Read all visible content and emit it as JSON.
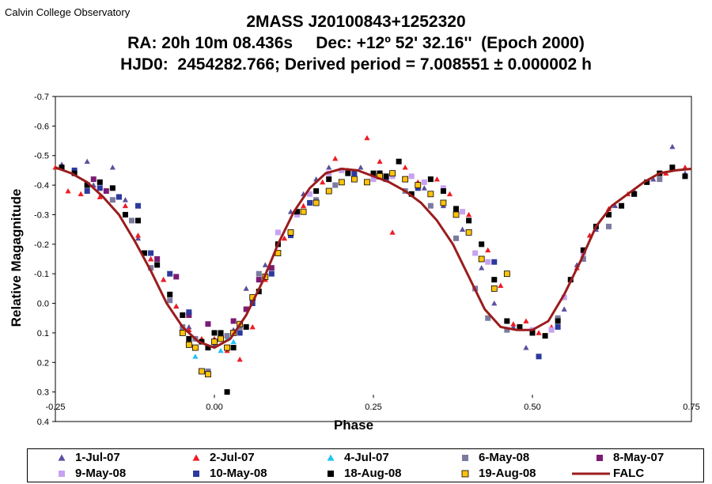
{
  "page": {
    "corner_label": "Calvin College Observatory",
    "title_lines": [
      "2MASS J20100843+1252320",
      "RA: 20h 10m 08.436s     Dec: +12º 52' 32.16''  (Epoch 2000)",
      "HJD0:  2454282.766; Derived period = 7.008551 ± 0.000002 h"
    ]
  },
  "chart_data": {
    "type": "scatter",
    "title": "2MASS J20100843+1252320",
    "xlabel": "Phase",
    "ylabel": "Relative Magagnitude",
    "xlim": [
      -0.25,
      0.75
    ],
    "ylim": [
      -0.7,
      0.4
    ],
    "y_inverted": true,
    "xticks": [
      -0.25,
      0.0,
      0.25,
      0.5,
      0.75
    ],
    "xtick_labels": [
      "-0.25",
      "0.00",
      "0.25",
      "0.50",
      "0.75"
    ],
    "yticks": [
      -0.7,
      -0.6,
      -0.5,
      -0.4,
      -0.3,
      -0.2,
      -0.1,
      0.0,
      0.1,
      0.2,
      0.3,
      0.4
    ],
    "ytick_labels": [
      "-0.7",
      "-0.6",
      "-0.5",
      "-0.4",
      "-0.3",
      "-0.2",
      "-0.1",
      "0.0",
      "0.1",
      "0.2",
      "0.3",
      "0.4"
    ],
    "grid": false,
    "legend_position": "bottom",
    "series": [
      {
        "name": "1-Jul-07",
        "marker": "triangle",
        "color": "#5b4f9e",
        "x": [
          -0.24,
          -0.22,
          -0.2,
          -0.19,
          -0.16,
          -0.14,
          -0.12,
          -0.1,
          -0.08,
          -0.06,
          -0.04,
          -0.02,
          0.0,
          0.03,
          0.05,
          0.08,
          0.1,
          0.12,
          0.14,
          0.16,
          0.18,
          0.2,
          0.23,
          0.26,
          0.3,
          0.33,
          0.36,
          0.39,
          0.42,
          0.44,
          0.47,
          0.49,
          0.52,
          0.55,
          0.57,
          0.6,
          0.63,
          0.66,
          0.69,
          0.72,
          0.74
        ],
        "y": [
          -0.47,
          -0.44,
          -0.48,
          -0.4,
          -0.46,
          -0.35,
          -0.22,
          -0.15,
          -0.08,
          0.01,
          0.08,
          0.13,
          0.14,
          0.09,
          -0.05,
          -0.13,
          -0.24,
          -0.31,
          -0.37,
          -0.42,
          -0.46,
          -0.45,
          -0.46,
          -0.44,
          -0.42,
          -0.39,
          -0.33,
          -0.25,
          -0.12,
          0.0,
          0.08,
          0.15,
          0.11,
          0.02,
          -0.13,
          -0.25,
          -0.33,
          -0.38,
          -0.42,
          -0.53,
          -0.44
        ]
      },
      {
        "name": "2-Jul-07",
        "marker": "triangle",
        "color": "#ee1c25",
        "x": [
          -0.25,
          -0.23,
          -0.21,
          -0.18,
          -0.16,
          -0.14,
          -0.12,
          -0.1,
          -0.08,
          -0.06,
          -0.04,
          -0.02,
          0.0,
          0.02,
          0.04,
          0.06,
          0.08,
          0.11,
          0.14,
          0.17,
          0.19,
          0.21,
          0.24,
          0.26,
          0.28,
          0.3,
          0.32,
          0.35,
          0.37,
          0.4,
          0.43,
          0.45,
          0.47,
          0.49,
          0.51,
          0.53,
          0.55,
          0.57,
          0.59,
          0.62,
          0.65,
          0.68,
          0.71,
          0.74
        ],
        "y": [
          -0.46,
          -0.38,
          -0.37,
          -0.36,
          -0.35,
          -0.33,
          -0.23,
          -0.15,
          -0.08,
          0.01,
          0.09,
          0.12,
          0.12,
          0.16,
          0.19,
          0.08,
          -0.08,
          -0.22,
          -0.33,
          -0.41,
          -0.49,
          -0.45,
          -0.56,
          -0.48,
          -0.24,
          -0.46,
          -0.41,
          -0.42,
          -0.37,
          -0.3,
          -0.18,
          -0.06,
          0.07,
          0.06,
          0.1,
          0.08,
          -0.02,
          -0.12,
          -0.23,
          -0.32,
          -0.37,
          -0.41,
          -0.44,
          -0.46
        ]
      },
      {
        "name": "4-Jul-07",
        "marker": "triangle",
        "color": "#21c4f2",
        "x": [
          -0.03,
          -0.01,
          0.0,
          0.01,
          0.02,
          0.03
        ],
        "y": [
          0.18,
          0.15,
          0.13,
          0.16,
          0.12,
          0.13
        ]
      },
      {
        "name": "6-May-08",
        "marker": "square",
        "color": "#7b7a9f",
        "x": [
          -0.2,
          -0.16,
          -0.13,
          -0.1,
          -0.07,
          -0.05,
          -0.03,
          -0.01,
          0.02,
          0.04,
          0.07,
          0.1,
          0.13,
          0.16,
          0.19,
          0.22,
          0.26,
          0.3,
          0.34,
          0.38,
          0.41,
          0.43,
          0.46,
          0.5,
          0.54,
          0.58,
          0.62,
          0.66,
          0.7
        ],
        "y": [
          -0.4,
          -0.35,
          -0.28,
          -0.12,
          -0.01,
          0.08,
          0.12,
          0.23,
          0.11,
          0.08,
          -0.1,
          -0.2,
          -0.3,
          -0.35,
          -0.4,
          -0.42,
          -0.44,
          -0.38,
          -0.33,
          -0.22,
          -0.05,
          0.05,
          0.09,
          0.1,
          0.05,
          -0.15,
          -0.26,
          -0.37,
          -0.42
        ]
      },
      {
        "name": "8-May-07",
        "marker": "square",
        "color": "#7b1b74",
        "x": [
          -0.19,
          -0.17,
          -0.15,
          -0.09,
          -0.06,
          -0.04,
          -0.01,
          0.03,
          0.05,
          0.07,
          0.09
        ],
        "y": [
          -0.42,
          -0.38,
          -0.36,
          -0.15,
          -0.09,
          0.04,
          0.07,
          0.06,
          0.02,
          -0.08,
          -0.12
        ]
      },
      {
        "name": "9-May-08",
        "marker": "square",
        "color": "#c7a2f1",
        "x": [
          0.1,
          0.13,
          0.15,
          0.18,
          0.2,
          0.22,
          0.25,
          0.28,
          0.31,
          0.33,
          0.36,
          0.39,
          0.41,
          0.43,
          0.5,
          0.53,
          0.55,
          0.58
        ],
        "y": [
          -0.24,
          -0.3,
          -0.37,
          -0.44,
          -0.45,
          -0.43,
          -0.42,
          -0.43,
          -0.43,
          -0.41,
          -0.39,
          -0.31,
          -0.17,
          -0.14,
          0.09,
          0.09,
          -0.02,
          -0.17
        ]
      },
      {
        "name": "10-May-08",
        "marker": "square",
        "color": "#2c3a9d",
        "x": [
          -0.22,
          -0.2,
          -0.18,
          -0.15,
          -0.12,
          -0.1,
          -0.07,
          -0.04,
          0.01,
          0.04,
          0.06,
          0.09,
          0.12,
          0.15,
          0.22,
          0.27,
          0.32,
          0.38,
          0.44,
          0.51,
          0.54
        ],
        "y": [
          -0.45,
          -0.38,
          -0.39,
          -0.36,
          -0.33,
          -0.17,
          -0.1,
          0.03,
          0.12,
          0.1,
          0.0,
          -0.1,
          -0.23,
          -0.34,
          -0.44,
          -0.42,
          -0.39,
          -0.32,
          -0.14,
          0.18,
          0.08
        ]
      },
      {
        "name": "18-Aug-08",
        "marker": "square",
        "color": "#000000",
        "x": [
          -0.24,
          -0.22,
          -0.2,
          -0.18,
          -0.16,
          -0.14,
          -0.12,
          -0.11,
          -0.09,
          -0.07,
          -0.05,
          -0.04,
          -0.02,
          -0.01,
          0.0,
          0.01,
          0.02,
          0.03,
          0.05,
          0.07,
          0.1,
          0.13,
          0.16,
          0.18,
          0.21,
          0.25,
          0.26,
          0.27,
          0.29,
          0.31,
          0.34,
          0.36,
          0.38,
          0.4,
          0.42,
          0.44,
          0.46,
          0.48,
          0.5,
          0.52,
          0.54,
          0.56,
          0.58,
          0.6,
          0.62,
          0.64,
          0.66,
          0.68,
          0.7,
          0.72,
          0.74
        ],
        "y": [
          -0.46,
          -0.44,
          -0.4,
          -0.41,
          -0.39,
          -0.3,
          -0.28,
          -0.17,
          -0.13,
          -0.03,
          0.04,
          0.12,
          0.13,
          0.15,
          0.1,
          0.1,
          0.3,
          0.15,
          0.08,
          -0.04,
          -0.2,
          -0.31,
          -0.38,
          -0.42,
          -0.44,
          -0.44,
          -0.44,
          -0.43,
          -0.48,
          -0.37,
          -0.42,
          -0.38,
          -0.32,
          -0.28,
          -0.2,
          -0.08,
          0.06,
          0.08,
          0.1,
          0.11,
          0.06,
          -0.08,
          -0.18,
          -0.26,
          -0.3,
          -0.33,
          -0.37,
          -0.41,
          -0.44,
          -0.46,
          -0.43
        ]
      },
      {
        "name": "19-Aug-08",
        "marker": "square",
        "color": "#ffc20e",
        "x": [
          -0.05,
          -0.04,
          -0.03,
          -0.02,
          -0.01,
          0.0,
          0.01,
          0.02,
          0.03,
          0.04,
          0.06,
          0.08,
          0.1,
          0.12,
          0.14,
          0.16,
          0.18,
          0.2,
          0.22,
          0.24,
          0.26,
          0.28,
          0.3,
          0.32,
          0.34,
          0.36,
          0.38,
          0.4,
          0.42,
          0.44,
          0.46
        ],
        "y": [
          0.1,
          0.14,
          0.15,
          0.23,
          0.24,
          0.13,
          0.12,
          0.15,
          0.1,
          0.07,
          -0.02,
          -0.09,
          -0.17,
          -0.24,
          -0.31,
          -0.34,
          -0.38,
          -0.41,
          -0.42,
          -0.41,
          -0.43,
          -0.44,
          -0.42,
          -0.4,
          -0.37,
          -0.34,
          -0.3,
          -0.24,
          -0.15,
          -0.05,
          -0.1
        ]
      },
      {
        "name": "FALC",
        "marker": "line",
        "color": "#9b1c1c",
        "x": [
          -0.25,
          -0.225,
          -0.2,
          -0.175,
          -0.15,
          -0.125,
          -0.1,
          -0.075,
          -0.05,
          -0.025,
          0.0,
          0.025,
          0.05,
          0.075,
          0.1,
          0.125,
          0.15,
          0.175,
          0.2,
          0.225,
          0.25,
          0.275,
          0.3,
          0.325,
          0.35,
          0.375,
          0.4,
          0.425,
          0.45,
          0.475,
          0.5,
          0.525,
          0.55,
          0.575,
          0.6,
          0.625,
          0.65,
          0.675,
          0.7,
          0.725,
          0.75
        ],
        "y": [
          -0.46,
          -0.44,
          -0.41,
          -0.36,
          -0.3,
          -0.21,
          -0.11,
          0.0,
          0.08,
          0.13,
          0.15,
          0.12,
          0.04,
          -0.07,
          -0.2,
          -0.31,
          -0.39,
          -0.44,
          -0.455,
          -0.45,
          -0.43,
          -0.41,
          -0.38,
          -0.34,
          -0.28,
          -0.2,
          -0.09,
          0.02,
          0.08,
          0.09,
          0.09,
          0.06,
          -0.03,
          -0.14,
          -0.26,
          -0.33,
          -0.37,
          -0.41,
          -0.44,
          -0.45,
          -0.455
        ]
      }
    ]
  }
}
